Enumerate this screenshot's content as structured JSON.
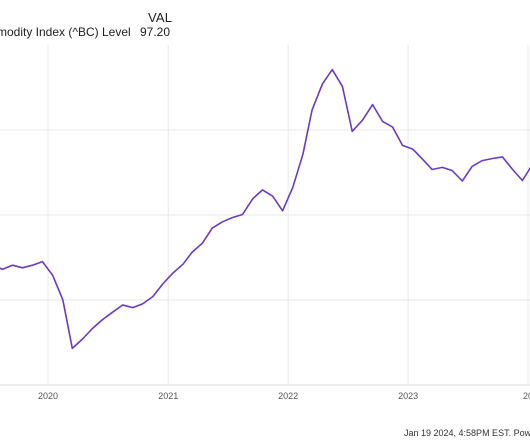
{
  "legend": {
    "column_header": "VAL",
    "series_name": "mmodity Index (^BC) Level",
    "series_value": "97.20"
  },
  "footer": {
    "timestamp": "Jan 19 2024, 4:58PM EST.",
    "powered": "Powered I"
  },
  "colors": {
    "series": "#6a3ac9",
    "grid": "#e8e8e8",
    "axis_text": "#555555"
  },
  "chart_data": {
    "type": "line",
    "title": "",
    "xlabel": "",
    "ylabel": "",
    "x_tick_labels": [
      "2020",
      "2021",
      "2022",
      "2023",
      "20"
    ],
    "y_tick_labels": [],
    "grid": true,
    "legend_position": "top-left",
    "series": [
      {
        "name": "mmodity Index (^BC) Level",
        "x": [
          "2019-06",
          "2019-07",
          "2019-08",
          "2019-09",
          "2019-10",
          "2019-11",
          "2019-12",
          "2020-01",
          "2020-02",
          "2020-03",
          "2020-04",
          "2020-05",
          "2020-06",
          "2020-07",
          "2020-08",
          "2020-09",
          "2020-10",
          "2020-11",
          "2020-12",
          "2021-01",
          "2021-02",
          "2021-03",
          "2021-04",
          "2021-05",
          "2021-06",
          "2021-07",
          "2021-08",
          "2021-09",
          "2021-10",
          "2021-11",
          "2021-12",
          "2022-01",
          "2022-02",
          "2022-03",
          "2022-04",
          "2022-05",
          "2022-06",
          "2022-07",
          "2022-08",
          "2022-09",
          "2022-10",
          "2022-11",
          "2022-12",
          "2023-01",
          "2023-02",
          "2023-03",
          "2023-04",
          "2023-05",
          "2023-06",
          "2023-07",
          "2023-08",
          "2023-09",
          "2023-10",
          "2023-11",
          "2023-12",
          "2024-01"
        ],
        "y": [
          76.6,
          78.2,
          77.1,
          77.9,
          77.4,
          77.9,
          78.6,
          76.0,
          71.3,
          62.0,
          63.8,
          65.8,
          67.5,
          68.9,
          70.3,
          69.8,
          70.5,
          71.9,
          74.3,
          76.4,
          78.1,
          80.4,
          82.1,
          85.0,
          86.2,
          87.0,
          87.6,
          90.6,
          92.3,
          91.1,
          88.3,
          92.8,
          99.1,
          107.6,
          112.5,
          115.3,
          112.1,
          103.5,
          105.6,
          108.6,
          105.4,
          104.3,
          100.8,
          100.1,
          98.1,
          96.2,
          96.6,
          96.0,
          94.0,
          96.8,
          97.9,
          98.3,
          98.6,
          96.2,
          94.1,
          97.2
        ]
      }
    ]
  }
}
